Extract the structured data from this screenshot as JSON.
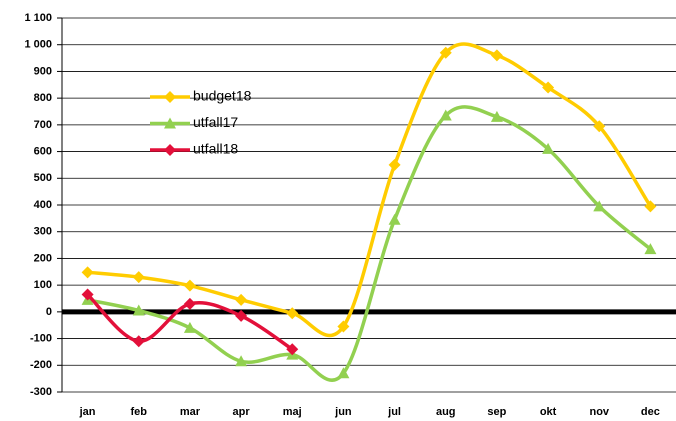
{
  "chart_data": {
    "type": "line",
    "categories": [
      "jan",
      "feb",
      "mar",
      "apr",
      "maj",
      "jun",
      "jul",
      "aug",
      "sep",
      "okt",
      "nov",
      "dec"
    ],
    "series": [
      {
        "name": "budget18",
        "color": "#ffcc00",
        "marker": "diamond",
        "values": [
          148,
          130,
          98,
          45,
          -5,
          -55,
          550,
          970,
          960,
          840,
          695,
          395
        ]
      },
      {
        "name": "utfall17",
        "color": "#92d050",
        "marker": "triangle",
        "values": [
          45,
          5,
          -60,
          -185,
          -160,
          -230,
          345,
          735,
          730,
          610,
          395,
          235
        ]
      },
      {
        "name": "utfall18",
        "color": "#e3103a",
        "marker": "diamond",
        "values": [
          65,
          -110,
          30,
          -15,
          -140,
          null,
          null,
          null,
          null,
          null,
          null,
          null
        ]
      }
    ],
    "ylim": [
      -300,
      1100
    ],
    "yticks": [
      -300,
      -200,
      -100,
      0,
      100,
      200,
      300,
      400,
      500,
      600,
      700,
      800,
      900,
      {
        "value": 1000,
        "label": "1 000"
      },
      {
        "value": 1100,
        "label": "1 100"
      }
    ],
    "grid": true,
    "smooth": true,
    "legend": "upper left"
  }
}
